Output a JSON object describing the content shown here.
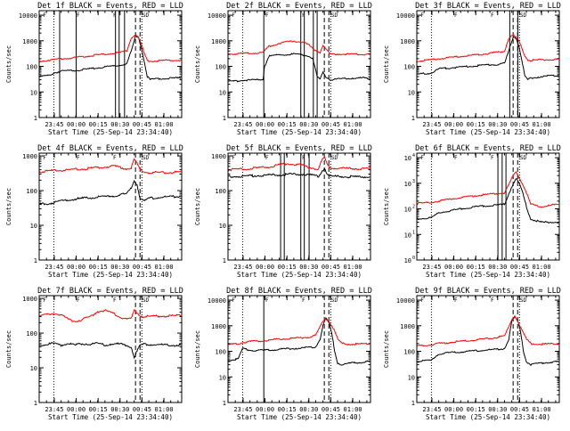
{
  "colors": {
    "events": "#000000",
    "lld": "#ff0000",
    "axis": "#000000",
    "background": "#ffffff"
  },
  "xlabel": "Start Time (25-Sep-14 23:34:40)",
  "ylabel": "Counts/sec",
  "x_tick_labels": [
    "23:45",
    "00:00",
    "00:15",
    "00:30",
    "00:45",
    "01:00"
  ],
  "x_tick_minutes": [
    10.33,
    25.33,
    40.33,
    55.33,
    70.33,
    85.33
  ],
  "x_range_minutes": [
    0,
    97.5
  ],
  "annotation_glyphs": [
    "F",
    "F",
    "F",
    "SD"
  ],
  "chart_data": [
    {
      "type": "line",
      "title": "Det 1f BLACK = Events, RED = LLD",
      "yscale": "log",
      "ylim": [
        1,
        15000
      ],
      "ytick_style": "plain",
      "y_tick_labels": [
        "1",
        "10",
        "100",
        "1000",
        "10000"
      ],
      "y_tick_values": [
        1,
        10,
        100,
        1000,
        10000
      ],
      "x": [
        0,
        7,
        10,
        15,
        25,
        35,
        45,
        55,
        60,
        63,
        66,
        68,
        70,
        72,
        74,
        76,
        78,
        85,
        97
      ],
      "series": [
        {
          "name": "Events",
          "values": [
            40,
            45,
            55,
            65,
            70,
            80,
            95,
            110,
            130,
            400,
            1500,
            1400,
            500,
            150,
            40,
            30,
            32,
            34,
            35
          ]
        },
        {
          "name": "LLD",
          "values": [
            160,
            175,
            185,
            200,
            220,
            260,
            300,
            340,
            400,
            1300,
            1800,
            1300,
            700,
            300,
            170,
            160,
            160,
            170,
            175
          ]
        }
      ],
      "vlines_solid": [
        14,
        25.3,
        52.2,
        54.7,
        58.4
      ],
      "vlines_dotted": [
        10,
        70.3
      ],
      "vlines_dashed": [
        65.9,
        69
      ]
    },
    {
      "type": "line",
      "title": "Det 2f BLACK = Events, RED = LLD",
      "yscale": "log",
      "ylim": [
        1,
        15000
      ],
      "ytick_style": "plain",
      "y_tick_labels": [
        "1",
        "10",
        "100",
        "1000",
        "10000"
      ],
      "y_tick_values": [
        1,
        10,
        100,
        1000,
        10000
      ],
      "x": [
        0,
        10,
        20,
        24,
        25,
        28,
        35,
        45,
        52,
        55,
        58,
        61,
        63,
        65,
        67,
        70,
        85,
        97
      ],
      "series": [
        {
          "name": "Events",
          "values": [
            25,
            28,
            30,
            32,
            100,
            250,
            280,
            300,
            280,
            250,
            200,
            40,
            30,
            60,
            40,
            30,
            35,
            35
          ]
        },
        {
          "name": "LLD",
          "values": [
            300,
            320,
            330,
            350,
            400,
            600,
            800,
            1000,
            850,
            700,
            500,
            400,
            350,
            700,
            450,
            300,
            300,
            300
          ]
        }
      ],
      "vlines_solid": [
        24.5,
        49.8,
        52.2,
        58.4,
        61
      ],
      "vlines_dotted": [
        10,
        70.3
      ],
      "vlines_dashed": [
        65.9,
        69
      ]
    },
    {
      "type": "line",
      "title": "Det 3f BLACK = Events, RED = LLD",
      "yscale": "log",
      "ylim": [
        1,
        15000
      ],
      "ytick_style": "plain",
      "y_tick_labels": [
        "1",
        "10",
        "100",
        "1000",
        "10000"
      ],
      "y_tick_values": [
        1,
        10,
        100,
        1000,
        10000
      ],
      "x": [
        0,
        10,
        15,
        25,
        35,
        45,
        55,
        60,
        63,
        66,
        68,
        70,
        72,
        74,
        76,
        78,
        85,
        97
      ],
      "series": [
        {
          "name": "Events",
          "values": [
            50,
            55,
            80,
            90,
            100,
            110,
            120,
            130,
            400,
            1500,
            1300,
            600,
            150,
            40,
            30,
            35,
            40,
            45
          ]
        },
        {
          "name": "LLD",
          "values": [
            160,
            180,
            200,
            230,
            260,
            300,
            350,
            400,
            1300,
            1700,
            1300,
            900,
            500,
            250,
            180,
            170,
            180,
            190
          ]
        }
      ],
      "vlines_solid": [
        63.6,
        69.1
      ],
      "vlines_dotted": [
        10,
        70.3
      ],
      "vlines_dashed": [
        65.9,
        69
      ]
    },
    {
      "type": "line",
      "title": "Det 4f BLACK = Events, RED = LLD",
      "yscale": "log",
      "ylim": [
        1,
        1200
      ],
      "ytick_style": "plain",
      "y_tick_labels": [
        "1",
        "10",
        "100",
        "1000"
      ],
      "y_tick_values": [
        1,
        10,
        100,
        1000
      ],
      "x": [
        0,
        10,
        20,
        30,
        40,
        50,
        55,
        60,
        63,
        65,
        67,
        69,
        72,
        75,
        85,
        97
      ],
      "series": [
        {
          "name": "Events",
          "values": [
            40,
            45,
            55,
            60,
            65,
            70,
            75,
            80,
            120,
            200,
            150,
            60,
            50,
            60,
            65,
            70
          ]
        },
        {
          "name": "LLD",
          "values": [
            350,
            380,
            400,
            420,
            460,
            500,
            480,
            420,
            450,
            800,
            600,
            400,
            350,
            330,
            330,
            340
          ]
        }
      ],
      "vlines_solid": [],
      "vlines_dotted": [
        10,
        70.3
      ],
      "vlines_dashed": [
        65.9,
        69
      ]
    },
    {
      "type": "line",
      "title": "Det 5f BLACK = Events, RED = LLD",
      "yscale": "log",
      "ylim": [
        1,
        1200
      ],
      "ytick_style": "plain",
      "y_tick_labels": [
        "1",
        "10",
        "100",
        "1000"
      ],
      "y_tick_values": [
        1,
        10,
        100,
        1000
      ],
      "x": [
        0,
        10,
        20,
        30,
        40,
        50,
        58,
        62,
        64,
        66,
        68,
        70,
        85,
        97
      ],
      "series": [
        {
          "name": "Events",
          "values": [
            250,
            260,
            270,
            280,
            290,
            300,
            280,
            260,
            350,
            450,
            300,
            260,
            250,
            250
          ]
        },
        {
          "name": "LLD",
          "values": [
            400,
            420,
            450,
            500,
            600,
            550,
            450,
            420,
            700,
            900,
            550,
            450,
            430,
            430
          ]
        }
      ],
      "vlines_solid": [
        36,
        38.5,
        49.8,
        52.2,
        55.5
      ],
      "vlines_dotted": [
        10,
        70.3
      ],
      "vlines_dashed": [
        65.9,
        69
      ]
    },
    {
      "type": "line",
      "title": "Det 6f BLACK = Events, RED = LLD",
      "yscale": "log",
      "ylim": [
        1,
        15000
      ],
      "ytick_style": "exponent",
      "y_tick_labels": [
        "10",
        "10",
        "10",
        "10",
        "10"
      ],
      "y_tick_exponents": [
        "0",
        "1",
        "2",
        "3",
        "4"
      ],
      "y_tick_values": [
        1,
        10,
        100,
        1000,
        10000
      ],
      "x": [
        0,
        10,
        15,
        25,
        35,
        45,
        55,
        60,
        63,
        66,
        68,
        70,
        72,
        74,
        76,
        78,
        85,
        97
      ],
      "series": [
        {
          "name": "Events",
          "values": [
            40,
            45,
            70,
            90,
            110,
            130,
            140,
            150,
            400,
            1000,
            1500,
            1000,
            500,
            200,
            80,
            40,
            30,
            30
          ]
        },
        {
          "name": "LLD",
          "values": [
            160,
            180,
            200,
            250,
            300,
            350,
            400,
            420,
            900,
            2000,
            2800,
            1700,
            1000,
            600,
            300,
            150,
            120,
            150
          ]
        }
      ],
      "vlines_solid": [
        55.5,
        58.4,
        61
      ],
      "vlines_dotted": [
        10,
        70.3
      ],
      "vlines_dashed": [
        65.9,
        69
      ]
    },
    {
      "type": "line",
      "title": "Det 7f BLACK = Events, RED = LLD",
      "yscale": "log",
      "ylim": [
        1,
        1200
      ],
      "ytick_style": "plain",
      "y_tick_labels": [
        "1",
        "10",
        "100",
        "1000"
      ],
      "y_tick_values": [
        1,
        10,
        100,
        1000
      ],
      "x": [
        0,
        10,
        15,
        20,
        25,
        30,
        35,
        40,
        45,
        50,
        55,
        60,
        63,
        65,
        67,
        69,
        72,
        85,
        97
      ],
      "series": [
        {
          "name": "Events",
          "values": [
            45,
            50,
            45,
            50,
            45,
            50,
            48,
            50,
            45,
            50,
            48,
            45,
            40,
            20,
            30,
            45,
            48,
            45,
            45
          ]
        },
        {
          "name": "LLD",
          "values": [
            300,
            380,
            330,
            250,
            220,
            250,
            300,
            420,
            450,
            380,
            300,
            250,
            260,
            450,
            400,
            320,
            300,
            310,
            320
          ]
        }
      ],
      "vlines_solid": [],
      "vlines_dotted": [
        10,
        70.3
      ],
      "vlines_dashed": [
        65.9,
        69
      ]
    },
    {
      "type": "line",
      "title": "Det 8f BLACK = Events, RED = LLD",
      "yscale": "log",
      "ylim": [
        1,
        15000
      ],
      "ytick_style": "plain",
      "y_tick_labels": [
        "1",
        "10",
        "100",
        "1000",
        "10000"
      ],
      "y_tick_values": [
        1,
        10,
        100,
        1000,
        10000
      ],
      "x": [
        0,
        7,
        10,
        15,
        25,
        35,
        45,
        55,
        60,
        63,
        65,
        67,
        69,
        71,
        73,
        75,
        78,
        85,
        97
      ],
      "series": [
        {
          "name": "Events",
          "values": [
            45,
            50,
            130,
            110,
            110,
            120,
            130,
            140,
            150,
            300,
            1000,
            2000,
            1300,
            500,
            100,
            35,
            30,
            35,
            40
          ]
        },
        {
          "name": "LLD",
          "values": [
            180,
            200,
            220,
            240,
            260,
            300,
            320,
            360,
            420,
            900,
            1500,
            1900,
            1500,
            1000,
            600,
            300,
            200,
            190,
            200
          ]
        }
      ],
      "vlines_solid": [
        24.5
      ],
      "vlines_dotted": [
        10,
        70.3
      ],
      "vlines_dashed": [
        65.9,
        69
      ]
    },
    {
      "type": "line",
      "title": "Det 9f BLACK = Events, RED = LLD",
      "yscale": "log",
      "ylim": [
        1,
        15000
      ],
      "ytick_style": "plain",
      "y_tick_labels": [
        "1",
        "10",
        "100",
        "1000",
        "10000"
      ],
      "y_tick_values": [
        1,
        10,
        100,
        1000,
        10000
      ],
      "x": [
        0,
        10,
        15,
        25,
        35,
        45,
        55,
        60,
        63,
        65,
        67,
        69,
        71,
        73,
        75,
        78,
        85,
        97
      ],
      "series": [
        {
          "name": "Events",
          "values": [
            40,
            45,
            80,
            90,
            100,
            110,
            120,
            130,
            300,
            1500,
            2200,
            1500,
            600,
            100,
            40,
            30,
            35,
            40
          ]
        },
        {
          "name": "LLD",
          "values": [
            160,
            180,
            200,
            230,
            260,
            300,
            350,
            400,
            900,
            1800,
            2500,
            1500,
            900,
            500,
            300,
            200,
            190,
            200
          ]
        }
      ],
      "vlines_solid": [],
      "vlines_dotted": [
        10,
        70.3
      ],
      "vlines_dashed": [
        65.9,
        69
      ]
    }
  ]
}
